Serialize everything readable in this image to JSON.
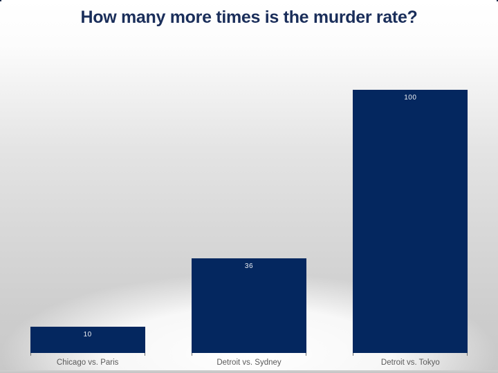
{
  "title": "How many more times is the murder rate?",
  "chart_data": {
    "type": "bar",
    "title": "How many more times is the murder rate?",
    "categories": [
      "Chicago vs. Paris",
      "Detroit vs. Sydney",
      "Detroit vs. Tokyo"
    ],
    "values": [
      10,
      36,
      100
    ],
    "data_labels": [
      "10",
      "36",
      "100"
    ],
    "xlabel": "",
    "ylabel": "",
    "ylim": [
      0,
      100
    ],
    "grid": false,
    "legend": "none",
    "bar_color": "#04275f",
    "value_label_color": "#eef1f5",
    "category_label_color": "#595959",
    "title_color": "#1a2e5a"
  }
}
